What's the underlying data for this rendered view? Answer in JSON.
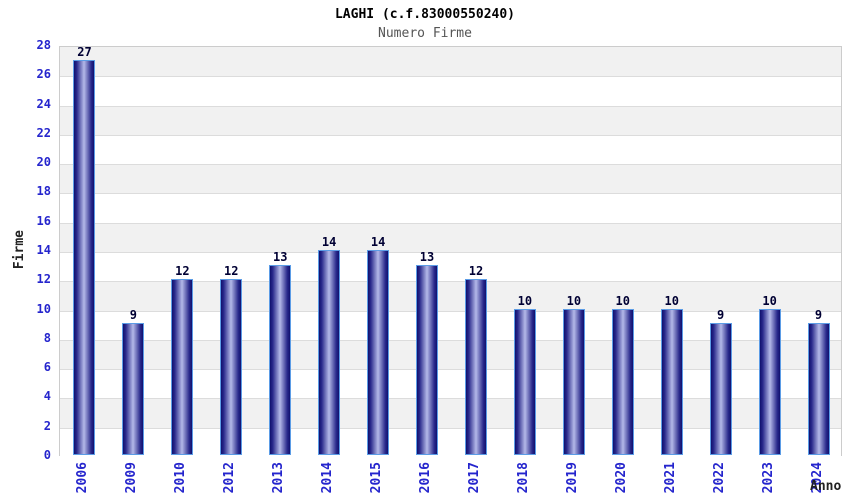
{
  "chart_data": {
    "type": "bar",
    "title": "LAGHI (c.f.83000550240)",
    "subtitle": "Numero Firme",
    "xlabel": "Anno",
    "ylabel": "Firme",
    "categories": [
      "2006",
      "2009",
      "2010",
      "2012",
      "2013",
      "2014",
      "2015",
      "2016",
      "2017",
      "2018",
      "2019",
      "2020",
      "2021",
      "2022",
      "2023",
      "2024"
    ],
    "values": [
      27,
      9,
      12,
      12,
      13,
      14,
      14,
      13,
      12,
      10,
      10,
      10,
      10,
      9,
      10,
      9
    ],
    "ylim": [
      0,
      28
    ],
    "ytick_step": 2,
    "grid": "horizontal-bands",
    "legend": "none",
    "colors": {
      "title": "#000000",
      "subtitle": "#555555",
      "axis_label": "#222222",
      "tick_label": "#2525cd",
      "value_label": "#000033",
      "bar_border": "#5b9ce6",
      "bar_dark": "#10106e",
      "bar_mid": "#2a2a8c",
      "bar_light": "#b4b9e8",
      "band_gray": "#f1f1f1",
      "band_white": "#ffffff",
      "gridline": "#dcdcdc",
      "plot_border": "#cccccc",
      "background": "#ffffff"
    }
  }
}
